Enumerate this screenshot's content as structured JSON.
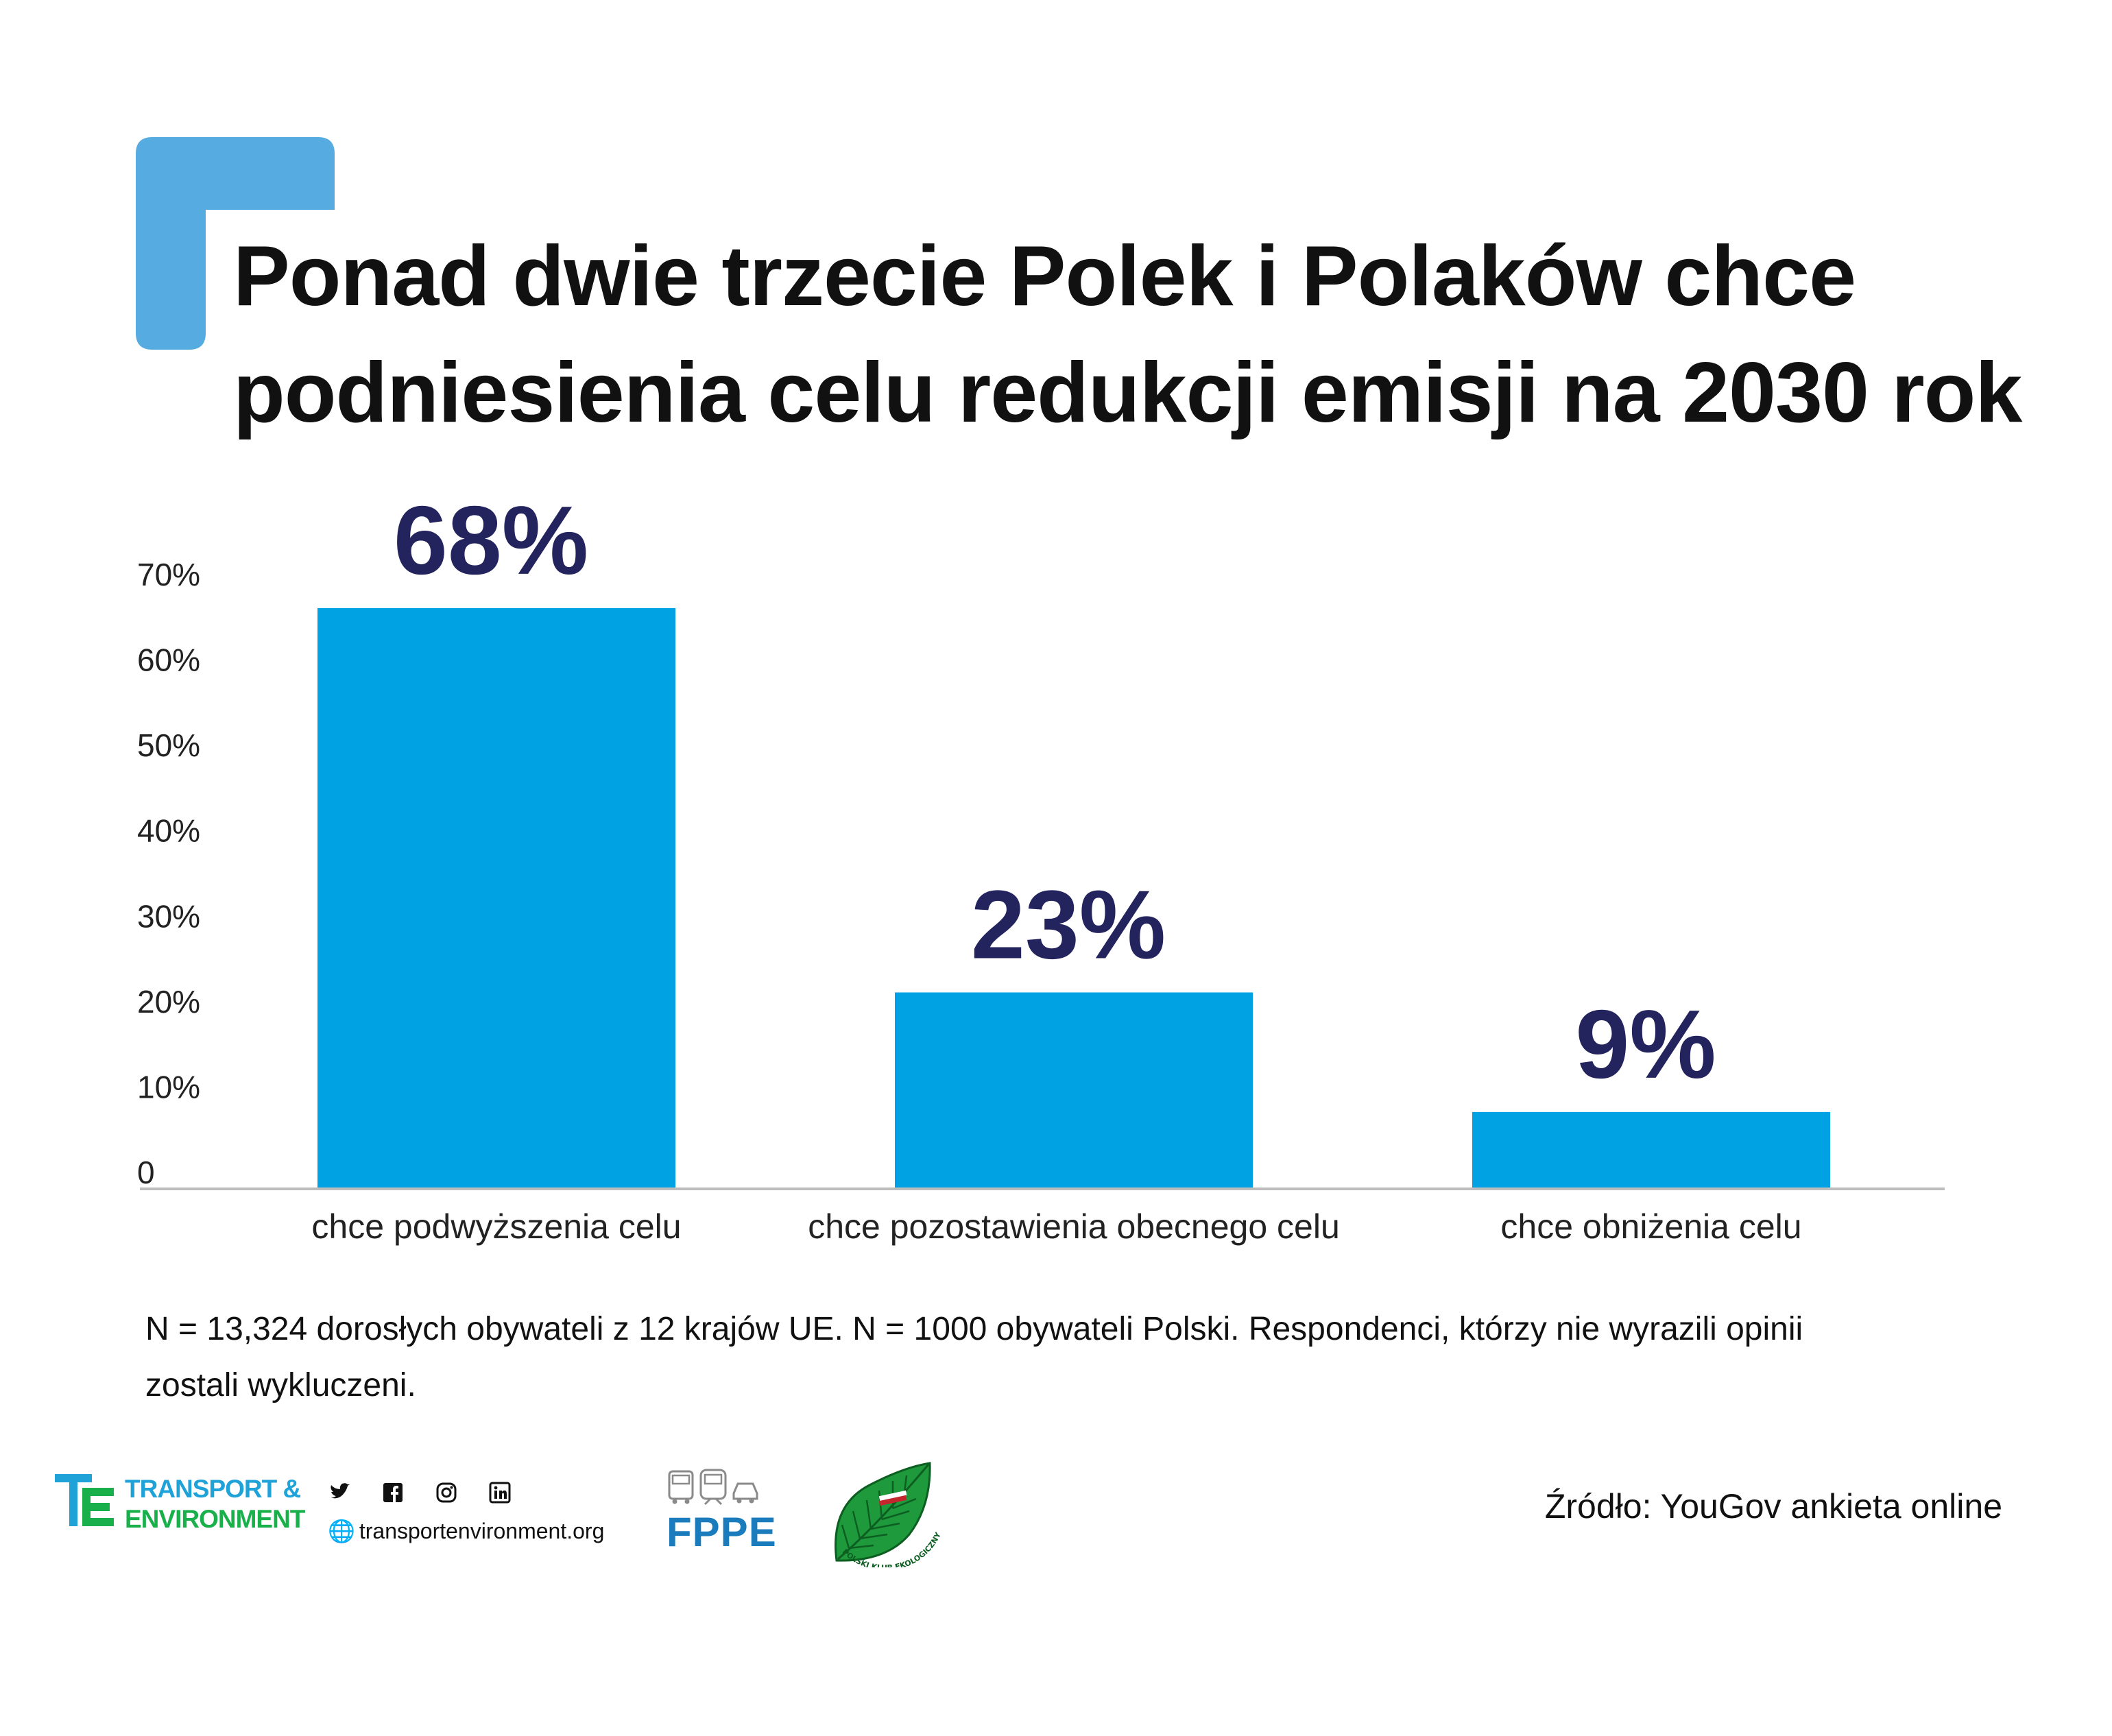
{
  "title_lines": [
    "Ponad dwie trzecie Polek i Polaków chce",
    "podniesienia celu redukcji emisji na 2030 rok"
  ],
  "note_lines": [
    "N = 13,324 dorosłych obywateli z 12 krajów UE. N = 1000 obywateli Polski. Respondenci, którzy nie wyrazili opinii",
    "zostali wykluczeni."
  ],
  "source": "Źródło: YouGov ankieta online",
  "footer": {
    "te_line1": "TRANSPORT &",
    "te_line2": "ENVIRONMENT",
    "website": "transportenvironment.org",
    "social_icons": [
      "twitter-icon",
      "facebook-icon",
      "instagram-icon",
      "linkedin-icon"
    ],
    "fppe": "FPPE",
    "pke_text": "POLSKI KLUB EKOLOGICZNY"
  },
  "colors": {
    "bar": "#00a2e3",
    "data_label": "#23235e",
    "bracket": "#56ace0",
    "axis": "#bdbdbd"
  },
  "chart_data": {
    "type": "bar",
    "categories": [
      "chce podwyższenia celu",
      "chce pozostawienia obecnego celu",
      "chce obniżenia celu"
    ],
    "values": [
      68,
      23,
      9
    ],
    "data_labels": [
      "68%",
      "23%",
      "9%"
    ],
    "ylim": [
      0,
      70
    ],
    "yticks": [
      0,
      10,
      20,
      30,
      40,
      50,
      60,
      70
    ],
    "ytick_labels": [
      "0",
      "10%",
      "20%",
      "30%",
      "40%",
      "50%",
      "60%",
      "70%"
    ],
    "grid": false,
    "legend": "none",
    "xlabel": "",
    "ylabel": ""
  }
}
